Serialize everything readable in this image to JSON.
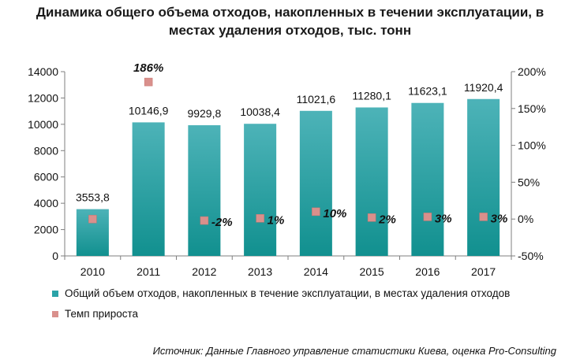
{
  "chart_data": {
    "type": "bar",
    "title_line1": "Динамика общего объема отходов, накопленных в течении эксплуатации, в",
    "title_line2": "местах удаления отходов, тыс. тонн",
    "categories": [
      "2010",
      "2011",
      "2012",
      "2013",
      "2014",
      "2015",
      "2016",
      "2017"
    ],
    "series": [
      {
        "name": "Общий объем отходов, накопленных в течение эксплуатации, в местах удаления отходов",
        "type": "bar",
        "axis": "left",
        "color": "#2aa3a8",
        "values": [
          3553.8,
          10146.9,
          9929.8,
          10038.4,
          11021.6,
          11280.1,
          11623.1,
          11920.4
        ],
        "labels": [
          "3553,8",
          "10146,9",
          "9929,8",
          "10038,4",
          "11021,6",
          "11280,1",
          "11623,1",
          "11920,4"
        ]
      },
      {
        "name": "Темп прироста",
        "type": "scatter",
        "axis": "right",
        "color": "#d9908c",
        "values": [
          0,
          186,
          -2,
          1,
          10,
          2,
          3,
          3
        ],
        "labels": [
          "",
          "186%",
          "-2%",
          "1%",
          "10%",
          "2%",
          "3%",
          "3%"
        ]
      }
    ],
    "y_left": {
      "min": 0,
      "max": 14000,
      "ticks": [
        "0",
        "2000",
        "4000",
        "6000",
        "8000",
        "10000",
        "12000",
        "14000"
      ]
    },
    "y_right": {
      "min": -50,
      "max": 200,
      "ticks": [
        "-50%",
        "0%",
        "50%",
        "100%",
        "150%",
        "200%"
      ]
    },
    "grid": false,
    "legend": "bottom"
  },
  "source": "Источник: Данные Главного управление статистики Киева, оценка Pro-Consulting"
}
